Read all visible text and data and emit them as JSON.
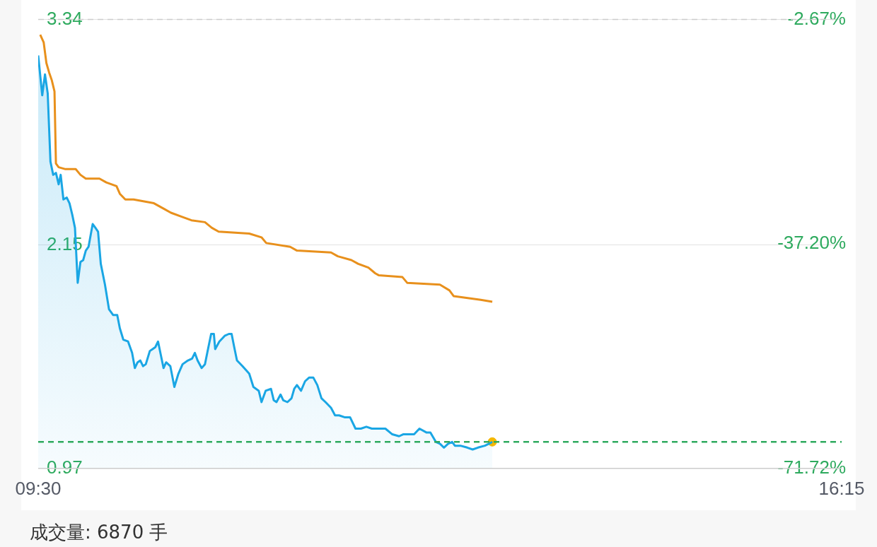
{
  "chart_data": {
    "type": "area",
    "xlim": [
      9.5,
      16.25
    ],
    "xticks": [
      {
        "value": 9.5,
        "label": "09:30"
      },
      {
        "value": 16.25,
        "label": "16:15"
      }
    ],
    "ylim": [
      0.97,
      3.34
    ],
    "yticks": [
      0.97,
      2.15,
      3.34
    ],
    "y2lim": [
      -71.72,
      -2.67
    ],
    "y2ticks": [
      {
        "value": -71.72,
        "label": "-71.72%"
      },
      {
        "value": -37.2,
        "label": "-37.20%"
      },
      {
        "value": -2.67,
        "label": "-2.67%"
      }
    ],
    "grid": "y",
    "legend": false,
    "ref_lines": [
      {
        "axis": "y",
        "value": 1.11,
        "color": "#2eaa5e",
        "line_style": "dashed"
      }
    ],
    "annotations": [
      "成交量:  6870 手"
    ],
    "series": [
      {
        "color": "#1aa6e4",
        "x": [
          9.5,
          9.534,
          9.557,
          9.58,
          9.603,
          9.626,
          9.649,
          9.672,
          9.689,
          9.712,
          9.74,
          9.763,
          9.786,
          9.809,
          9.832,
          9.855,
          9.878,
          9.9,
          9.923,
          9.946,
          9.958,
          9.981,
          10.003,
          10.026,
          10.061,
          10.095,
          10.129,
          10.164,
          10.186,
          10.215,
          10.255,
          10.289,
          10.312,
          10.335,
          10.358,
          10.381,
          10.404,
          10.438,
          10.461,
          10.484,
          10.507,
          10.53,
          10.553,
          10.575,
          10.61,
          10.644,
          10.678,
          10.713,
          10.758,
          10.793,
          10.816,
          10.839,
          10.873,
          10.901,
          10.93,
          10.953,
          10.976,
          10.987,
          11.022,
          11.067,
          11.102,
          11.125,
          11.147,
          11.17,
          11.216,
          11.273,
          11.308,
          11.353,
          11.376,
          11.411,
          11.456,
          11.479,
          11.502,
          11.536,
          11.559,
          11.594,
          11.628,
          11.651,
          11.674,
          11.708,
          11.742,
          11.777,
          11.811,
          11.845,
          11.88,
          11.914,
          11.96,
          11.994,
          12.028,
          12.074,
          12.12,
          12.166,
          12.211,
          12.257,
          12.303,
          12.36,
          12.417,
          12.475,
          12.532,
          12.566,
          12.612,
          12.658,
          12.703,
          12.761,
          12.795,
          12.841,
          12.875,
          12.909,
          12.944,
          12.978,
          13.001,
          13.047,
          13.104,
          13.15,
          13.195,
          13.253,
          13.287,
          13.315
        ],
        "values": [
          3.15,
          2.94,
          3.05,
          2.95,
          2.59,
          2.52,
          2.53,
          2.47,
          2.52,
          2.39,
          2.4,
          2.37,
          2.31,
          2.24,
          1.95,
          2.06,
          2.07,
          2.12,
          2.14,
          2.22,
          2.26,
          2.24,
          2.22,
          2.05,
          1.94,
          1.81,
          1.78,
          1.78,
          1.71,
          1.65,
          1.64,
          1.58,
          1.5,
          1.53,
          1.54,
          1.51,
          1.52,
          1.59,
          1.6,
          1.61,
          1.64,
          1.57,
          1.5,
          1.53,
          1.51,
          1.4,
          1.47,
          1.52,
          1.54,
          1.55,
          1.58,
          1.54,
          1.5,
          1.52,
          1.61,
          1.68,
          1.68,
          1.6,
          1.64,
          1.67,
          1.68,
          1.68,
          1.61,
          1.54,
          1.51,
          1.47,
          1.4,
          1.38,
          1.32,
          1.38,
          1.39,
          1.33,
          1.32,
          1.36,
          1.33,
          1.32,
          1.34,
          1.39,
          1.41,
          1.38,
          1.43,
          1.45,
          1.45,
          1.41,
          1.34,
          1.32,
          1.29,
          1.25,
          1.25,
          1.24,
          1.24,
          1.18,
          1.18,
          1.19,
          1.18,
          1.18,
          1.18,
          1.15,
          1.14,
          1.15,
          1.15,
          1.15,
          1.18,
          1.16,
          1.16,
          1.11,
          1.1,
          1.08,
          1.1,
          1.11,
          1.09,
          1.09,
          1.08,
          1.07,
          1.08,
          1.09,
          1.1,
          1.11
        ]
      },
      {
        "type": "line",
        "color": "#e8901c",
        "x": [
          9.517,
          9.546,
          9.569,
          9.592,
          9.614,
          9.637,
          9.649,
          9.672,
          9.729,
          9.815,
          9.855,
          9.9,
          10.015,
          10.072,
          10.158,
          10.186,
          10.232,
          10.301,
          10.472,
          10.558,
          10.615,
          10.701,
          10.787,
          10.901,
          10.959,
          11.016,
          11.273,
          11.376,
          11.416,
          11.617,
          11.674,
          11.96,
          12.017,
          12.131,
          12.189,
          12.274,
          12.332,
          12.36,
          12.56,
          12.6,
          12.875,
          12.955,
          12.99,
          13.218,
          13.315
        ],
        "values": [
          3.26,
          3.22,
          3.11,
          3.06,
          3.02,
          2.96,
          2.58,
          2.56,
          2.55,
          2.55,
          2.52,
          2.5,
          2.5,
          2.48,
          2.46,
          2.42,
          2.39,
          2.39,
          2.37,
          2.34,
          2.32,
          2.3,
          2.28,
          2.27,
          2.24,
          2.22,
          2.21,
          2.19,
          2.16,
          2.14,
          2.12,
          2.11,
          2.09,
          2.07,
          2.05,
          2.03,
          2,
          1.99,
          1.98,
          1.95,
          1.94,
          1.91,
          1.88,
          1.86,
          1.85
        ]
      },
      {
        "type": "scatter",
        "color": "#f5b800",
        "x": [
          13.315
        ],
        "values": [
          1.11
        ]
      }
    ]
  }
}
